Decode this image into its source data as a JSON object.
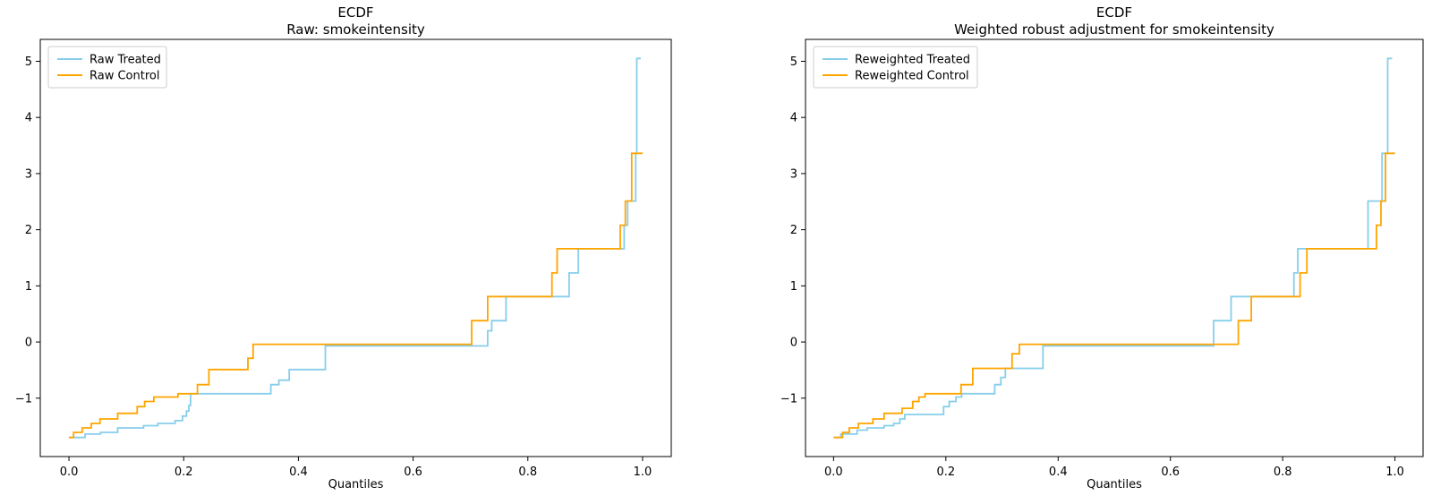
{
  "figure": {
    "background": "#ffffff",
    "treated_color": "#87CEEB",
    "control_color": "#FFA500"
  },
  "chart_data": [
    {
      "type": "line",
      "line_style": "step-post",
      "title": "ECDF",
      "subtitle": "Raw: smokeintensity",
      "xlabel": "Quantiles",
      "ylabel": "",
      "grid": false,
      "legend_position": "upper left",
      "xlim": [
        -0.05,
        1.05
      ],
      "ylim": [
        -2.04,
        5.39
      ],
      "x_ticks": [
        {
          "v": 0.0,
          "label": "0.0"
        },
        {
          "v": 0.2,
          "label": "0.2"
        },
        {
          "v": 0.4,
          "label": "0.4"
        },
        {
          "v": 0.6,
          "label": "0.6"
        },
        {
          "v": 0.8,
          "label": "0.8"
        },
        {
          "v": 1.0,
          "label": "1.0"
        }
      ],
      "y_ticks": [
        {
          "v": 5,
          "label": "5"
        },
        {
          "v": 4,
          "label": "4"
        },
        {
          "v": 3,
          "label": "3"
        },
        {
          "v": 2,
          "label": "2"
        },
        {
          "v": 1,
          "label": "1"
        },
        {
          "v": 0,
          "label": "0"
        },
        {
          "v": -1,
          "label": "−1"
        }
      ],
      "series": [
        {
          "name": "Raw Treated",
          "color": "#87CEEB",
          "points": [
            [
              0.0,
              -1.7
            ],
            [
              0.028,
              -1.64
            ],
            [
              0.055,
              -1.61
            ],
            [
              0.085,
              -1.53
            ],
            [
              0.13,
              -1.49
            ],
            [
              0.155,
              -1.45
            ],
            [
              0.185,
              -1.4
            ],
            [
              0.198,
              -1.32
            ],
            [
              0.205,
              -1.23
            ],
            [
              0.209,
              -1.13
            ],
            [
              0.212,
              -0.92
            ],
            [
              0.352,
              -0.76
            ],
            [
              0.366,
              -0.68
            ],
            [
              0.384,
              -0.49
            ],
            [
              0.447,
              -0.07
            ],
            [
              0.73,
              0.2
            ],
            [
              0.737,
              0.38
            ],
            [
              0.762,
              0.81
            ],
            [
              0.872,
              1.23
            ],
            [
              0.888,
              1.66
            ],
            [
              0.968,
              2.08
            ],
            [
              0.974,
              2.51
            ],
            [
              0.988,
              3.36
            ],
            [
              0.99,
              5.05
            ],
            [
              0.997,
              5.05
            ]
          ]
        },
        {
          "name": "Raw Control",
          "color": "#FFA500",
          "points": [
            [
              0.0,
              -1.7
            ],
            [
              0.008,
              -1.61
            ],
            [
              0.023,
              -1.53
            ],
            [
              0.039,
              -1.45
            ],
            [
              0.054,
              -1.37
            ],
            [
              0.085,
              -1.27
            ],
            [
              0.119,
              -1.15
            ],
            [
              0.132,
              -1.06
            ],
            [
              0.148,
              -0.98
            ],
            [
              0.19,
              -0.92
            ],
            [
              0.224,
              -0.76
            ],
            [
              0.244,
              -0.49
            ],
            [
              0.312,
              -0.29
            ],
            [
              0.321,
              -0.04
            ],
            [
              0.702,
              0.38
            ],
            [
              0.73,
              0.81
            ],
            [
              0.842,
              1.23
            ],
            [
              0.851,
              1.66
            ],
            [
              0.961,
              2.08
            ],
            [
              0.97,
              2.51
            ],
            [
              0.981,
              3.36
            ],
            [
              1.0,
              3.36
            ]
          ]
        }
      ]
    },
    {
      "type": "line",
      "line_style": "step-post",
      "title": "ECDF",
      "subtitle": "Weighted robust adjustment for smokeintensity",
      "xlabel": "Quantiles",
      "ylabel": "",
      "grid": false,
      "legend_position": "upper left",
      "xlim": [
        -0.05,
        1.05
      ],
      "ylim": [
        -2.04,
        5.39
      ],
      "x_ticks": [
        {
          "v": 0.0,
          "label": "0.0"
        },
        {
          "v": 0.2,
          "label": "0.2"
        },
        {
          "v": 0.4,
          "label": "0.4"
        },
        {
          "v": 0.6,
          "label": "0.6"
        },
        {
          "v": 0.8,
          "label": "0.8"
        },
        {
          "v": 1.0,
          "label": "1.0"
        }
      ],
      "y_ticks": [
        {
          "v": 5,
          "label": "5"
        },
        {
          "v": 4,
          "label": "4"
        },
        {
          "v": 3,
          "label": "3"
        },
        {
          "v": 2,
          "label": "2"
        },
        {
          "v": 1,
          "label": "1"
        },
        {
          "v": 0,
          "label": "0"
        },
        {
          "v": -1,
          "label": "−1"
        }
      ],
      "series": [
        {
          "name": "Reweighted Treated",
          "color": "#87CEEB",
          "points": [
            [
              0.0,
              -1.7
            ],
            [
              0.013,
              -1.64
            ],
            [
              0.042,
              -1.57
            ],
            [
              0.06,
              -1.53
            ],
            [
              0.09,
              -1.49
            ],
            [
              0.107,
              -1.45
            ],
            [
              0.118,
              -1.37
            ],
            [
              0.127,
              -1.29
            ],
            [
              0.196,
              -1.15
            ],
            [
              0.206,
              -1.06
            ],
            [
              0.218,
              -0.98
            ],
            [
              0.228,
              -0.92
            ],
            [
              0.287,
              -0.76
            ],
            [
              0.298,
              -0.63
            ],
            [
              0.306,
              -0.47
            ],
            [
              0.373,
              -0.07
            ],
            [
              0.677,
              0.38
            ],
            [
              0.708,
              0.81
            ],
            [
              0.82,
              1.23
            ],
            [
              0.827,
              1.66
            ],
            [
              0.952,
              2.51
            ],
            [
              0.977,
              3.36
            ],
            [
              0.987,
              5.05
            ],
            [
              0.995,
              5.05
            ]
          ]
        },
        {
          "name": "Reweighted Control",
          "color": "#FFA500",
          "points": [
            [
              0.0,
              -1.7
            ],
            [
              0.016,
              -1.61
            ],
            [
              0.028,
              -1.53
            ],
            [
              0.044,
              -1.45
            ],
            [
              0.07,
              -1.37
            ],
            [
              0.09,
              -1.27
            ],
            [
              0.122,
              -1.18
            ],
            [
              0.141,
              -1.06
            ],
            [
              0.152,
              -0.98
            ],
            [
              0.163,
              -0.92
            ],
            [
              0.227,
              -0.76
            ],
            [
              0.248,
              -0.47
            ],
            [
              0.318,
              -0.21
            ],
            [
              0.331,
              -0.04
            ],
            [
              0.721,
              0.38
            ],
            [
              0.744,
              0.81
            ],
            [
              0.831,
              1.23
            ],
            [
              0.843,
              1.66
            ],
            [
              0.967,
              2.08
            ],
            [
              0.975,
              2.51
            ],
            [
              0.983,
              3.36
            ],
            [
              1.0,
              3.36
            ]
          ]
        }
      ]
    }
  ]
}
